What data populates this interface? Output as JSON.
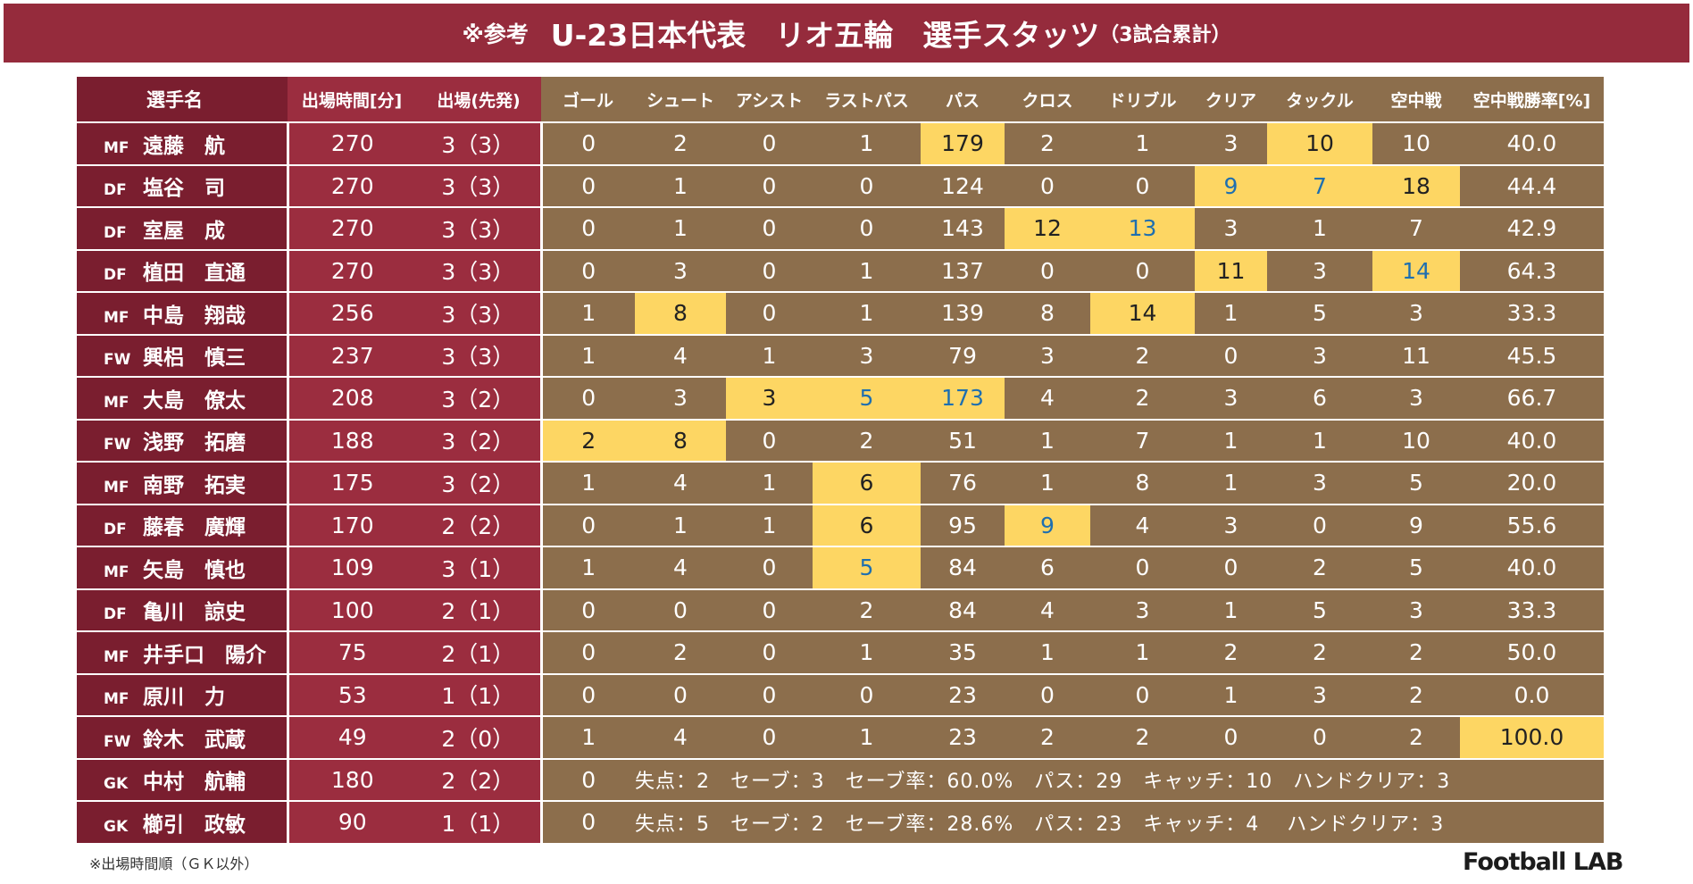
{
  "title": {
    "prefix": "※参考",
    "main": "U-23日本代表　リオ五輪　選手スタッツ",
    "suffix": "（3試合累計）"
  },
  "columns": {
    "name": "選手名",
    "minutes": "出場時間[分]",
    "apps": "出場(先発)",
    "stats": [
      "ゴール",
      "シュート",
      "アシスト",
      "ラストパス",
      "パス",
      "クロス",
      "ドリブル",
      "クリア",
      "タックル",
      "空中戦",
      "空中戦勝率[%]"
    ]
  },
  "players": [
    {
      "pos": "MF",
      "name": "遠藤　航",
      "minutes": "270",
      "apps": "3（3）",
      "stats": [
        "0",
        "2",
        "0",
        "1",
        "179",
        "2",
        "1",
        "3",
        "10",
        "10",
        "40.0"
      ],
      "hl": [
        4,
        8
      ],
      "blue": []
    },
    {
      "pos": "DF",
      "name": "塩谷　司",
      "minutes": "270",
      "apps": "3（3）",
      "stats": [
        "0",
        "1",
        "0",
        "0",
        "124",
        "0",
        "0",
        "9",
        "7",
        "18",
        "44.4"
      ],
      "hl": [
        7,
        8,
        9
      ],
      "blue": [
        7,
        8
      ]
    },
    {
      "pos": "DF",
      "name": "室屋　成",
      "minutes": "270",
      "apps": "3（3）",
      "stats": [
        "0",
        "1",
        "0",
        "0",
        "143",
        "12",
        "13",
        "3",
        "1",
        "7",
        "42.9"
      ],
      "hl": [
        5,
        6
      ],
      "blue": [
        6
      ]
    },
    {
      "pos": "DF",
      "name": "植田　直通",
      "minutes": "270",
      "apps": "3（3）",
      "stats": [
        "0",
        "3",
        "0",
        "1",
        "137",
        "0",
        "0",
        "11",
        "3",
        "14",
        "64.3"
      ],
      "hl": [
        7,
        9
      ],
      "blue": [
        9
      ]
    },
    {
      "pos": "MF",
      "name": "中島　翔哉",
      "minutes": "256",
      "apps": "3（3）",
      "stats": [
        "1",
        "8",
        "0",
        "1",
        "139",
        "8",
        "14",
        "1",
        "5",
        "3",
        "33.3"
      ],
      "hl": [
        1,
        6
      ],
      "blue": []
    },
    {
      "pos": "FW",
      "name": "興梠　慎三",
      "minutes": "237",
      "apps": "3（3）",
      "stats": [
        "1",
        "4",
        "1",
        "3",
        "79",
        "3",
        "2",
        "0",
        "3",
        "11",
        "45.5"
      ],
      "hl": [],
      "blue": []
    },
    {
      "pos": "MF",
      "name": "大島　僚太",
      "minutes": "208",
      "apps": "3（2）",
      "stats": [
        "0",
        "3",
        "3",
        "5",
        "173",
        "4",
        "2",
        "3",
        "6",
        "3",
        "66.7"
      ],
      "hl": [
        2,
        3,
        4
      ],
      "blue": [
        3,
        4
      ]
    },
    {
      "pos": "FW",
      "name": "浅野　拓磨",
      "minutes": "188",
      "apps": "3（2）",
      "stats": [
        "2",
        "8",
        "0",
        "2",
        "51",
        "1",
        "7",
        "1",
        "1",
        "10",
        "40.0"
      ],
      "hl": [
        0,
        1
      ],
      "blue": []
    },
    {
      "pos": "MF",
      "name": "南野　拓実",
      "minutes": "175",
      "apps": "3（2）",
      "stats": [
        "1",
        "4",
        "1",
        "6",
        "76",
        "1",
        "8",
        "1",
        "3",
        "5",
        "20.0"
      ],
      "hl": [
        3
      ],
      "blue": []
    },
    {
      "pos": "DF",
      "name": "藤春　廣輝",
      "minutes": "170",
      "apps": "2（2）",
      "stats": [
        "0",
        "1",
        "1",
        "6",
        "95",
        "9",
        "4",
        "3",
        "0",
        "9",
        "55.6"
      ],
      "hl": [
        3,
        5
      ],
      "blue": [
        5
      ]
    },
    {
      "pos": "MF",
      "name": "矢島　慎也",
      "minutes": "109",
      "apps": "3（1）",
      "stats": [
        "1",
        "4",
        "0",
        "5",
        "84",
        "6",
        "0",
        "0",
        "2",
        "5",
        "40.0"
      ],
      "hl": [
        3
      ],
      "blue": [
        3
      ]
    },
    {
      "pos": "DF",
      "name": "亀川　諒史",
      "minutes": "100",
      "apps": "2（1）",
      "stats": [
        "0",
        "0",
        "0",
        "2",
        "84",
        "4",
        "3",
        "1",
        "5",
        "3",
        "33.3"
      ],
      "hl": [],
      "blue": []
    },
    {
      "pos": "MF",
      "name": "井手口　陽介",
      "minutes": "75",
      "apps": "2（1）",
      "stats": [
        "0",
        "2",
        "0",
        "1",
        "35",
        "1",
        "1",
        "2",
        "2",
        "2",
        "50.0"
      ],
      "hl": [],
      "blue": []
    },
    {
      "pos": "MF",
      "name": "原川　力",
      "minutes": "53",
      "apps": "1（1）",
      "stats": [
        "0",
        "0",
        "0",
        "0",
        "23",
        "0",
        "0",
        "1",
        "3",
        "2",
        "0.0"
      ],
      "hl": [],
      "blue": []
    },
    {
      "pos": "FW",
      "name": "鈴木　武蔵",
      "minutes": "49",
      "apps": "2（0）",
      "stats": [
        "1",
        "4",
        "0",
        "1",
        "23",
        "2",
        "2",
        "0",
        "0",
        "2",
        "100.0"
      ],
      "hl": [
        10
      ],
      "blue": []
    }
  ],
  "goalkeepers": [
    {
      "pos": "GK",
      "name": "中村　航輔",
      "minutes": "180",
      "apps": "2（2）",
      "goals": "0",
      "summary": "失点：2　セーブ：3　セーブ率：60.0%　パス：29　キャッチ：10　ハンドクリア：3"
    },
    {
      "pos": "GK",
      "name": "櫛引　政敏",
      "minutes": "90",
      "apps": "1（1）",
      "goals": "0",
      "summary": "失点：5　セーブ：2　セーブ率：28.6%　パス：23　キャッチ：4　 ハンドクリア：3"
    }
  ],
  "footnote": "※出場時間順（ＧＫ以外）",
  "logo": "Football LAB",
  "colors": {
    "banner": "#952b3c",
    "name_col": "#7a1e2f",
    "basic_col": "#9b2d3f",
    "stats_col": "#8c6e4c",
    "highlight": "#fdd663",
    "highlight_blue_text": "#1e6fb0"
  }
}
